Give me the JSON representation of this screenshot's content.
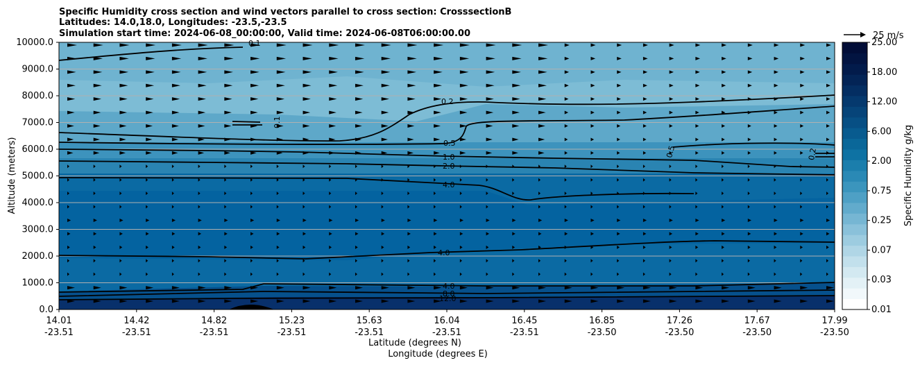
{
  "chart_data": {
    "type": "contour",
    "title_lines": [
      "Specific Humidity cross section and wind vectors parallel to cross section: CrosssectionB",
      "Latitudes: 14.0,18.0, Longitudes: -23.5,-23.5",
      "Simulation start time: 2024-06-08_00:00:00, Valid time: 2024-06-08T06:00:00.00"
    ],
    "ylabel": "Altitude (meters)",
    "xlabel_lat": "Latitude (degrees N)",
    "xlabel_lon": "Longitude (degrees E)",
    "ylim": [
      0,
      10000
    ],
    "y_ticks": [
      "0.0",
      "1000.0",
      "2000.0",
      "3000.0",
      "4000.0",
      "5000.0",
      "6000.0",
      "7000.0",
      "8000.0",
      "9000.0",
      "10000.0"
    ],
    "x_ticks": [
      {
        "lat": "14.01",
        "lon": "-23.51"
      },
      {
        "lat": "14.42",
        "lon": "-23.51"
      },
      {
        "lat": "14.82",
        "lon": "-23.51"
      },
      {
        "lat": "15.23",
        "lon": "-23.51"
      },
      {
        "lat": "15.63",
        "lon": "-23.51"
      },
      {
        "lat": "16.04",
        "lon": "-23.51"
      },
      {
        "lat": "16.45",
        "lon": "-23.51"
      },
      {
        "lat": "16.85",
        "lon": "-23.50"
      },
      {
        "lat": "17.26",
        "lon": "-23.50"
      },
      {
        "lat": "17.67",
        "lon": "-23.50"
      },
      {
        "lat": "17.99",
        "lon": "-23.50"
      }
    ],
    "colorbar": {
      "label": "Specific Humidity g/kg",
      "ticks": [
        "0.01",
        "0.03",
        "0.07",
        "0.25",
        "0.75",
        "2.00",
        "6.00",
        "12.00",
        "18.00",
        "25.00"
      ]
    },
    "quiver_key": "25 m/s",
    "contour_labels": [
      "0.1",
      "0.1",
      "0.2",
      "0.5",
      "1.0",
      "2.0",
      "4.0",
      "4.0",
      "4.0",
      "8.0",
      "12.0",
      "0.5",
      "0.2"
    ],
    "grid": "horizontal",
    "colors": {
      "low": "#ffffff",
      "mid": "#2a8ab5",
      "high": "#08306b"
    }
  }
}
